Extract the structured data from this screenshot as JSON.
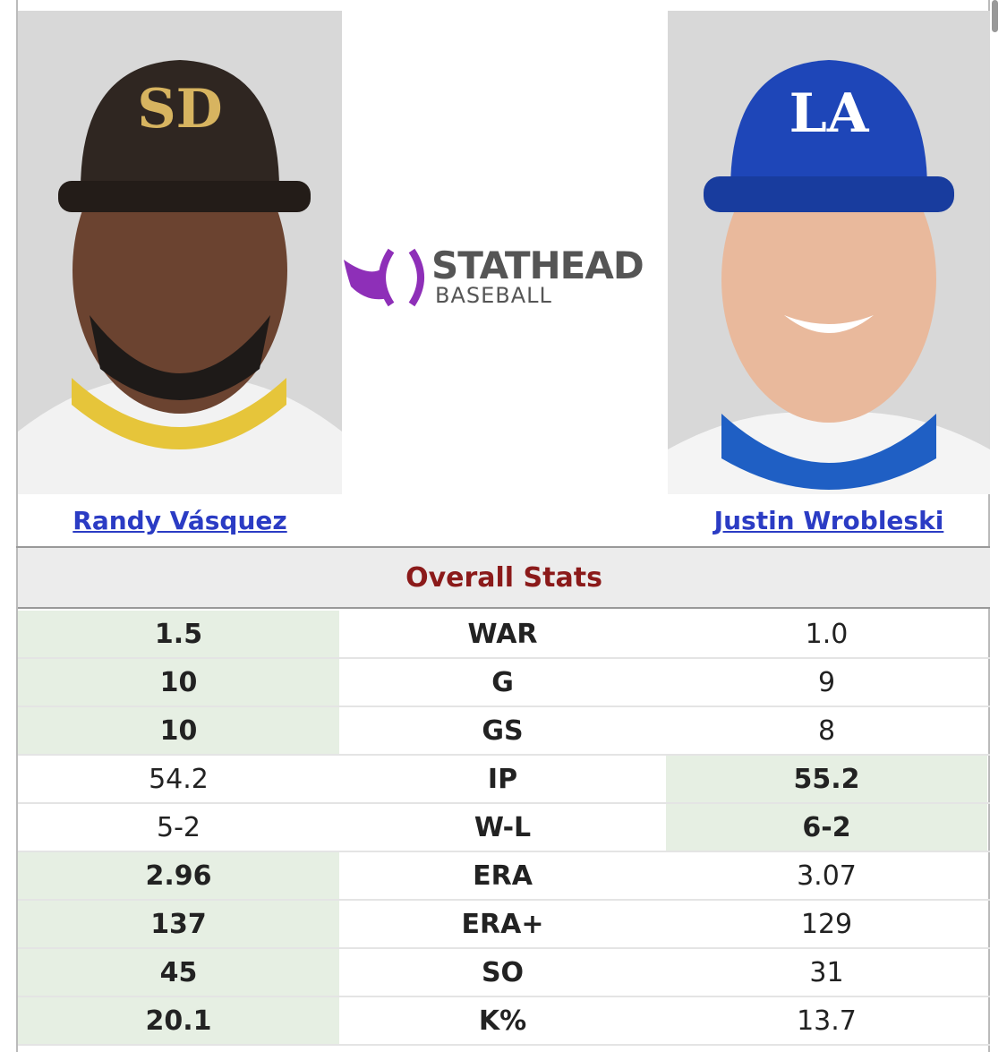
{
  "header": {
    "left_player": "Randy Vásquez",
    "right_player": "Justin Wrobleski",
    "logo": {
      "brand": "STATHEAD",
      "product": "BASEBALL"
    }
  },
  "section_title": "Overall Stats",
  "table": {
    "rows": [
      {
        "left": "1.5",
        "stat": "WAR",
        "right": "1.0",
        "leader": "left"
      },
      {
        "left": "10",
        "stat": "G",
        "right": "9",
        "leader": "left"
      },
      {
        "left": "10",
        "stat": "GS",
        "right": "8",
        "leader": "left"
      },
      {
        "left": "54.2",
        "stat": "IP",
        "right": "55.2",
        "leader": "right"
      },
      {
        "left": "5-2",
        "stat": "W-L",
        "right": "6-2",
        "leader": "right"
      },
      {
        "left": "2.96",
        "stat": "ERA",
        "right": "3.07",
        "leader": "left"
      },
      {
        "left": "137",
        "stat": "ERA+",
        "right": "129",
        "leader": "left"
      },
      {
        "left": "45",
        "stat": "SO",
        "right": "31",
        "leader": "left"
      },
      {
        "left": "20.1",
        "stat": "K%",
        "right": "13.7",
        "leader": "left"
      }
    ]
  }
}
